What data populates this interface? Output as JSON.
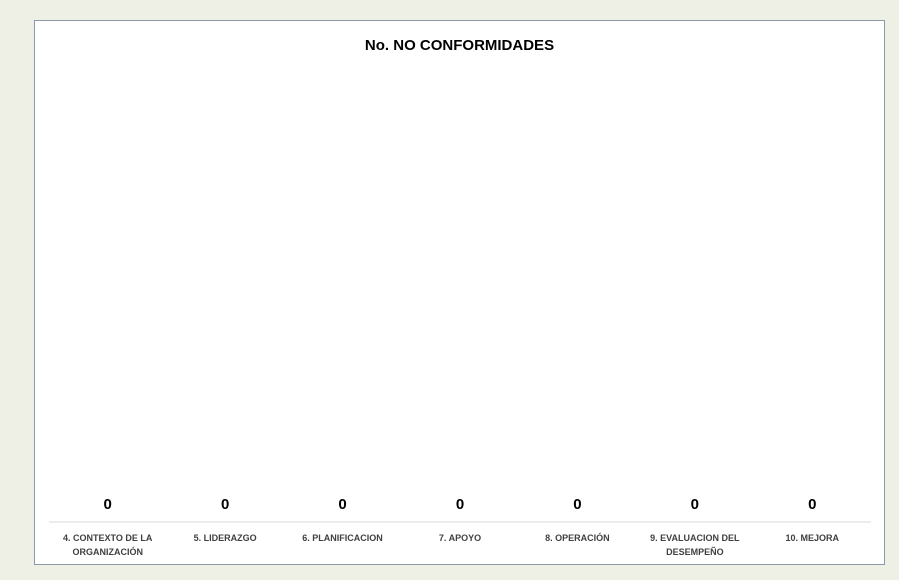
{
  "chart_data": {
    "type": "bar",
    "title": "No. NO CONFORMIDADES",
    "categories": [
      "4. CONTEXTO DE LA ORGANIZACIÓN",
      "5. LIDERAZGO",
      "6. PLANIFICACION",
      "7. APOYO",
      "8. OPERACIÓN",
      "9. EVALUACION DEL DESEMPEÑO",
      "10. MEJORA"
    ],
    "values": [
      0,
      0,
      0,
      0,
      0,
      0,
      0
    ]
  }
}
